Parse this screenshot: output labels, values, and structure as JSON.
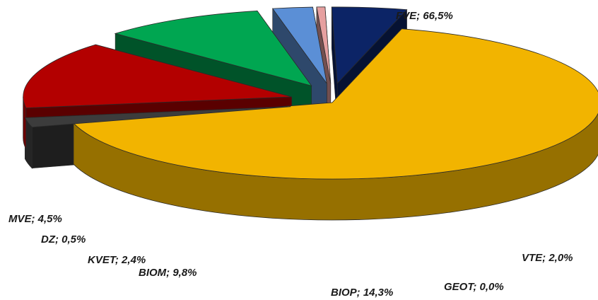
{
  "chart_data": {
    "type": "pie",
    "style": "3d-exploded",
    "title": "",
    "slices": [
      {
        "name": "FVE",
        "value": 66.5,
        "label": "FVE; 66,5%",
        "color": "#f2b400"
      },
      {
        "name": "VTE",
        "value": 2.0,
        "label": "VTE; 2,0%",
        "color": "#3c3c3c"
      },
      {
        "name": "GEOT",
        "value": 0.0,
        "label": "GEOT; 0,0%",
        "color": "#1f3a7a"
      },
      {
        "name": "BIOP",
        "value": 14.3,
        "label": "BIOP; 14,3%",
        "color": "#b30000"
      },
      {
        "name": "BIOM",
        "value": 9.8,
        "label": "BIOM; 9,8%",
        "color": "#00a651"
      },
      {
        "name": "KVET",
        "value": 2.4,
        "label": "KVET; 2,4%",
        "color": "#5b8fd6"
      },
      {
        "name": "DZ",
        "value": 0.5,
        "label": "DZ; 0,5%",
        "color": "#e6a0a0"
      },
      {
        "name": "MVE",
        "value": 4.5,
        "label": "MVE; 4,5%",
        "color": "#0c2466"
      }
    ],
    "legend": "none"
  }
}
